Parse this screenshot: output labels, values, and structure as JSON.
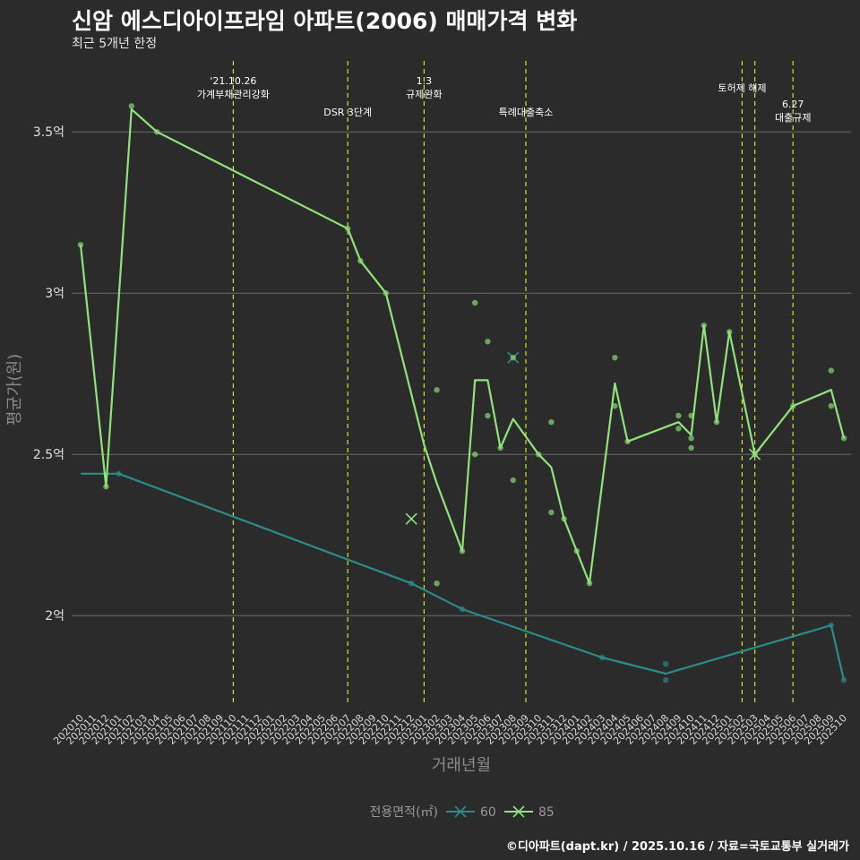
{
  "header": {
    "title": "신암 에스디아이프라임 아파트(2006) 매매가격 변화",
    "subtitle": "최근 5개년 한정"
  },
  "footer": {
    "caption": "©디아파트(dapt.kr) / 2025.10.16 / 자료=국토교통부 실거래가"
  },
  "colors": {
    "background": "#2b2b2b",
    "grid": "#6b6b6b",
    "vline": "#d4e02a",
    "series60": "#2a8d8a",
    "series85": "#8fe37a"
  },
  "chart_data": {
    "type": "line",
    "title": "신암 에스디아이프라임 아파트(2006) 매매가격 변화",
    "xlabel": "거래년월",
    "ylabel": "평균가(원)",
    "ylim": [
      1.72,
      3.72
    ],
    "yticks": [
      2,
      2.5,
      3,
      3.5
    ],
    "ytick_labels": [
      "2억",
      "2.5억",
      "3억",
      "3.5억"
    ],
    "categories": [
      "202010",
      "202011",
      "202012",
      "202101",
      "202102",
      "202103",
      "202104",
      "202105",
      "202106",
      "202107",
      "202108",
      "202109",
      "202110",
      "202111",
      "202112",
      "202201",
      "202202",
      "202203",
      "202204",
      "202205",
      "202206",
      "202207",
      "202208",
      "202209",
      "202210",
      "202211",
      "202212",
      "202301",
      "202302",
      "202303",
      "202304",
      "202305",
      "202306",
      "202307",
      "202308",
      "202309",
      "202310",
      "202311",
      "202312",
      "202401",
      "202402",
      "202403",
      "202404",
      "202405",
      "202406",
      "202407",
      "202408",
      "202409",
      "202410",
      "202411",
      "202412",
      "202501",
      "202502",
      "202503",
      "202504",
      "202505",
      "202506",
      "202507",
      "202508",
      "202509",
      "202510"
    ],
    "legend": {
      "title": "전용면적(㎡)",
      "entries": [
        "60",
        "85"
      ],
      "position": "bottom"
    },
    "series": [
      {
        "name": "60",
        "line": [
          [
            "202010",
            2.44
          ],
          [
            "202101",
            2.44
          ],
          [
            "202212",
            2.1
          ],
          [
            "202304",
            2.02
          ],
          [
            "202403",
            1.87
          ],
          [
            "202408",
            1.82
          ],
          [
            "202509",
            1.97
          ],
          [
            "202510",
            1.8
          ]
        ],
        "points": [
          [
            "202101",
            2.44
          ],
          [
            "202212",
            2.1
          ],
          [
            "202304",
            2.02
          ],
          [
            "202403",
            1.87
          ],
          [
            "202408",
            1.85
          ],
          [
            "202408",
            1.8
          ],
          [
            "202509",
            1.97
          ],
          [
            "202510",
            1.8
          ]
        ],
        "x_markers": [
          [
            "202308",
            2.8
          ]
        ]
      },
      {
        "name": "85",
        "line": [
          [
            "202010",
            3.15
          ],
          [
            "202012",
            2.4
          ],
          [
            "202102",
            3.57
          ],
          [
            "202104",
            3.5
          ],
          [
            "202207",
            3.2
          ],
          [
            "202208",
            3.1
          ],
          [
            "202210",
            3.0
          ],
          [
            "202301",
            2.53
          ],
          [
            "202302",
            2.41
          ],
          [
            "202304",
            2.2
          ],
          [
            "202305",
            2.73
          ],
          [
            "202306",
            2.73
          ],
          [
            "202307",
            2.52
          ],
          [
            "202308",
            2.61
          ],
          [
            "202310",
            2.5
          ],
          [
            "202311",
            2.46
          ],
          [
            "202312",
            2.3
          ],
          [
            "202401",
            2.2
          ],
          [
            "202402",
            2.1
          ],
          [
            "202404",
            2.72
          ],
          [
            "202405",
            2.54
          ],
          [
            "202409",
            2.6
          ],
          [
            "202410",
            2.56
          ],
          [
            "202411",
            2.9
          ],
          [
            "202412",
            2.6
          ],
          [
            "202501",
            2.88
          ],
          [
            "202503",
            2.5
          ],
          [
            "202506",
            2.65
          ],
          [
            "202509",
            2.7
          ],
          [
            "202510",
            2.55
          ]
        ],
        "points": [
          [
            "202010",
            3.15
          ],
          [
            "202012",
            2.4
          ],
          [
            "202102",
            3.58
          ],
          [
            "202104",
            3.5
          ],
          [
            "202207",
            3.2
          ],
          [
            "202208",
            3.1
          ],
          [
            "202210",
            3.0
          ],
          [
            "202302",
            2.7
          ],
          [
            "202302",
            2.1
          ],
          [
            "202304",
            2.2
          ],
          [
            "202305",
            2.97
          ],
          [
            "202305",
            2.5
          ],
          [
            "202306",
            2.85
          ],
          [
            "202306",
            2.62
          ],
          [
            "202307",
            2.52
          ],
          [
            "202308",
            2.42
          ],
          [
            "202308",
            2.8
          ],
          [
            "202310",
            2.5
          ],
          [
            "202311",
            2.6
          ],
          [
            "202311",
            2.32
          ],
          [
            "202312",
            2.3
          ],
          [
            "202401",
            2.2
          ],
          [
            "202402",
            2.1
          ],
          [
            "202404",
            2.8
          ],
          [
            "202404",
            2.65
          ],
          [
            "202405",
            2.54
          ],
          [
            "202409",
            2.62
          ],
          [
            "202409",
            2.58
          ],
          [
            "202410",
            2.62
          ],
          [
            "202410",
            2.55
          ],
          [
            "202410",
            2.52
          ],
          [
            "202411",
            2.9
          ],
          [
            "202412",
            2.6
          ],
          [
            "202501",
            2.88
          ],
          [
            "202503",
            2.5
          ],
          [
            "202506",
            2.65
          ],
          [
            "202509",
            2.76
          ],
          [
            "202509",
            2.65
          ],
          [
            "202510",
            2.55
          ]
        ],
        "x_markers": [
          [
            "202212",
            2.3
          ],
          [
            "202503",
            2.5
          ]
        ]
      }
    ],
    "annotations": [
      {
        "x": "202110",
        "lines": [
          "'21.10.26",
          "가계부채관리강화"
        ],
        "row": 0
      },
      {
        "x": "202207",
        "lines": [
          "DSR 3단계"
        ],
        "row": 2
      },
      {
        "x": "202301",
        "lines": [
          "1.3",
          "규제완화"
        ],
        "row": 0
      },
      {
        "x": "202309",
        "lines": [
          "특례대출축소"
        ],
        "row": 2
      },
      {
        "x": "202502",
        "lines": [
          "토허제 해제"
        ],
        "row": 1
      },
      {
        "x": "202503",
        "lines": [],
        "row": 1
      },
      {
        "x": "202506",
        "lines": [
          "6.27",
          "대출규제"
        ],
        "row": 1.5
      }
    ]
  }
}
